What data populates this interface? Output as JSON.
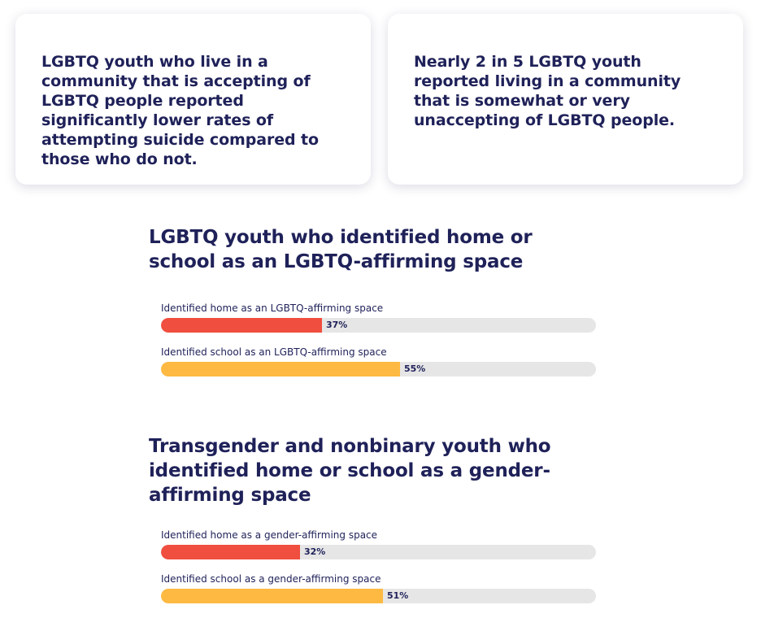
{
  "cards": [
    {
      "text": "LGBTQ youth who live in a community that is accepting of LGBTQ people reported significantly lower rates of attempting suicide compared to those who do not."
    },
    {
      "text": "Nearly 2 in 5 LGBTQ youth reported living in a community that is somewhat or very unaccepting of LGBTQ people."
    }
  ],
  "colors": {
    "home": "#f04e3e",
    "school": "#fdb941",
    "track": "#e6e6e6",
    "text": "#1f2159"
  },
  "chart_data": [
    {
      "type": "bar",
      "orientation": "horizontal",
      "title": "LGBTQ youth who identified home or school as an LGBTQ-affirming space",
      "categories": [
        "Identified home as an LGBTQ-affirming space",
        "Identified school as an LGBTQ-affirming space"
      ],
      "values": [
        37,
        55
      ],
      "value_labels": [
        "37%",
        "55%"
      ],
      "xlim": [
        0,
        100
      ],
      "unit": "%"
    },
    {
      "type": "bar",
      "orientation": "horizontal",
      "title": "Transgender and nonbinary youth who identified home or school as a gender-affirming space",
      "categories": [
        "Identified home as a gender-affirming space",
        "Identified school as a gender-affirming space"
      ],
      "values": [
        32,
        51
      ],
      "value_labels": [
        "32%",
        "51%"
      ],
      "xlim": [
        0,
        100
      ],
      "unit": "%"
    }
  ]
}
